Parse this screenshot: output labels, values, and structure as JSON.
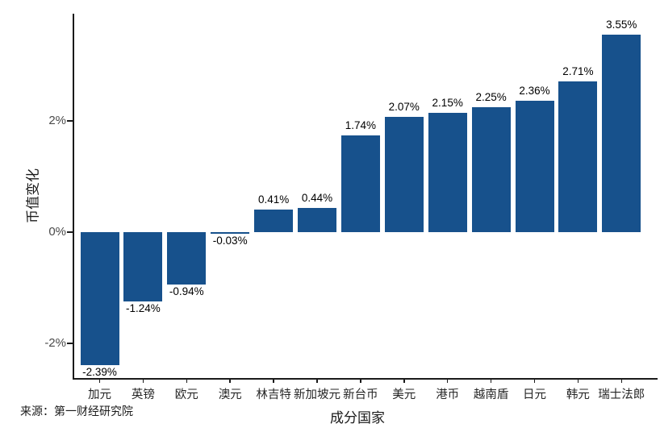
{
  "chart_data": {
    "type": "bar",
    "categories": [
      "加元",
      "英镑",
      "欧元",
      "澳元",
      "林吉特",
      "新加坡元",
      "新台币",
      "美元",
      "港币",
      "越南盾",
      "日元",
      "韩元",
      "瑞士法郎"
    ],
    "values": [
      -2.39,
      -1.24,
      -0.94,
      -0.03,
      0.41,
      0.44,
      1.74,
      2.07,
      2.15,
      2.25,
      2.36,
      2.71,
      3.55
    ],
    "value_labels": [
      "-2.39%",
      "-1.24%",
      "-0.94%",
      "-0.03%",
      "0.41%",
      "0.44%",
      "1.74%",
      "2.07%",
      "2.15%",
      "2.25%",
      "2.36%",
      "2.71%",
      "3.55%"
    ],
    "title": "",
    "xlabel": "成分国家",
    "ylabel": "币值变化",
    "y_ticks": [
      {
        "label": "2%",
        "value": 2
      },
      {
        "label": "0%",
        "value": 0
      },
      {
        "label": "-2%",
        "value": -2
      }
    ],
    "ylim": [
      -2.6,
      3.8
    ],
    "grid": false,
    "legend": "none",
    "bar_color": "#17518C"
  },
  "source_note": "来源：第一财经研究院",
  "colors": {
    "bar": "#17518C",
    "axis": "#1a1a1a",
    "tick_label": "#4a4a4a",
    "value_label": "#000000"
  }
}
